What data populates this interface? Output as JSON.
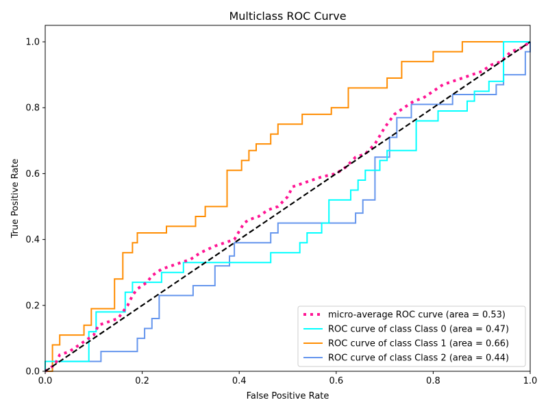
{
  "chart_data": {
    "type": "line",
    "title": "Multiclass ROC Curve",
    "xlabel": "False Positive Rate",
    "ylabel": "True Positive Rate",
    "xlim": [
      0.0,
      1.0
    ],
    "ylim": [
      0.0,
      1.05
    ],
    "x_ticks": [
      "0.0",
      "0.2",
      "0.4",
      "0.6",
      "0.8",
      "1.0"
    ],
    "y_ticks": [
      "0.0",
      "0.2",
      "0.4",
      "0.6",
      "0.8",
      "1.0"
    ],
    "grid": false,
    "legend_position": "lower-right",
    "reference_line": {
      "style": "dashed",
      "color": "#000000",
      "points": [
        [
          0,
          0
        ],
        [
          1,
          1
        ]
      ]
    },
    "series": [
      {
        "name": "micro-average ROC curve (area = 0.53)",
        "color": "#ff1493",
        "style": "dotted",
        "points": [
          [
            0,
            0
          ],
          [
            0.02,
            0.02
          ],
          [
            0.03,
            0.05
          ],
          [
            0.05,
            0.06
          ],
          [
            0.07,
            0.08
          ],
          [
            0.09,
            0.1
          ],
          [
            0.1,
            0.11
          ],
          [
            0.11,
            0.14
          ],
          [
            0.13,
            0.15
          ],
          [
            0.15,
            0.16
          ],
          [
            0.17,
            0.2
          ],
          [
            0.18,
            0.23
          ],
          [
            0.19,
            0.25
          ],
          [
            0.21,
            0.27
          ],
          [
            0.22,
            0.29
          ],
          [
            0.24,
            0.31
          ],
          [
            0.26,
            0.32
          ],
          [
            0.28,
            0.33
          ],
          [
            0.3,
            0.34
          ],
          [
            0.32,
            0.36
          ],
          [
            0.35,
            0.38
          ],
          [
            0.37,
            0.39
          ],
          [
            0.39,
            0.4
          ],
          [
            0.41,
            0.45
          ],
          [
            0.42,
            0.46
          ],
          [
            0.44,
            0.47
          ],
          [
            0.46,
            0.49
          ],
          [
            0.48,
            0.5
          ],
          [
            0.5,
            0.53
          ],
          [
            0.51,
            0.56
          ],
          [
            0.53,
            0.57
          ],
          [
            0.55,
            0.58
          ],
          [
            0.57,
            0.59
          ],
          [
            0.6,
            0.6
          ],
          [
            0.62,
            0.62
          ],
          [
            0.64,
            0.65
          ],
          [
            0.66,
            0.66
          ],
          [
            0.68,
            0.69
          ],
          [
            0.7,
            0.74
          ],
          [
            0.72,
            0.78
          ],
          [
            0.74,
            0.8
          ],
          [
            0.76,
            0.82
          ],
          [
            0.78,
            0.83
          ],
          [
            0.8,
            0.85
          ],
          [
            0.82,
            0.87
          ],
          [
            0.84,
            0.88
          ],
          [
            0.86,
            0.89
          ],
          [
            0.88,
            0.9
          ],
          [
            0.9,
            0.91
          ],
          [
            0.92,
            0.93
          ],
          [
            0.94,
            0.94
          ],
          [
            0.96,
            0.97
          ],
          [
            0.98,
            0.98
          ],
          [
            1.0,
            1.0
          ]
        ]
      },
      {
        "name": "ROC curve of class Class 0 (area = 0.47)",
        "color": "#00ffff",
        "style": "solid",
        "points": [
          [
            0,
            0
          ],
          [
            0.0,
            0.03
          ],
          [
            0.09,
            0.03
          ],
          [
            0.09,
            0.12
          ],
          [
            0.105,
            0.12
          ],
          [
            0.105,
            0.18
          ],
          [
            0.165,
            0.18
          ],
          [
            0.165,
            0.24
          ],
          [
            0.18,
            0.24
          ],
          [
            0.18,
            0.27
          ],
          [
            0.24,
            0.27
          ],
          [
            0.24,
            0.3
          ],
          [
            0.285,
            0.3
          ],
          [
            0.285,
            0.33
          ],
          [
            0.465,
            0.33
          ],
          [
            0.465,
            0.36
          ],
          [
            0.525,
            0.36
          ],
          [
            0.525,
            0.39
          ],
          [
            0.54,
            0.39
          ],
          [
            0.54,
            0.42
          ],
          [
            0.57,
            0.42
          ],
          [
            0.57,
            0.45
          ],
          [
            0.585,
            0.45
          ],
          [
            0.585,
            0.52
          ],
          [
            0.63,
            0.52
          ],
          [
            0.63,
            0.55
          ],
          [
            0.645,
            0.55
          ],
          [
            0.645,
            0.58
          ],
          [
            0.66,
            0.58
          ],
          [
            0.66,
            0.61
          ],
          [
            0.69,
            0.61
          ],
          [
            0.69,
            0.64
          ],
          [
            0.705,
            0.64
          ],
          [
            0.705,
            0.67
          ],
          [
            0.765,
            0.67
          ],
          [
            0.765,
            0.76
          ],
          [
            0.81,
            0.76
          ],
          [
            0.81,
            0.79
          ],
          [
            0.87,
            0.79
          ],
          [
            0.87,
            0.82
          ],
          [
            0.885,
            0.82
          ],
          [
            0.885,
            0.85
          ],
          [
            0.915,
            0.85
          ],
          [
            0.915,
            0.88
          ],
          [
            0.945,
            0.88
          ],
          [
            0.945,
            1.0
          ],
          [
            1.0,
            1.0
          ]
        ]
      },
      {
        "name": "ROC curve of class Class 1 (area = 0.66)",
        "color": "#ff8c00",
        "style": "solid",
        "points": [
          [
            0,
            0
          ],
          [
            0.015,
            0.0
          ],
          [
            0.015,
            0.08
          ],
          [
            0.03,
            0.08
          ],
          [
            0.03,
            0.11
          ],
          [
            0.08,
            0.11
          ],
          [
            0.08,
            0.14
          ],
          [
            0.095,
            0.14
          ],
          [
            0.095,
            0.19
          ],
          [
            0.143,
            0.19
          ],
          [
            0.143,
            0.28
          ],
          [
            0.16,
            0.28
          ],
          [
            0.16,
            0.36
          ],
          [
            0.18,
            0.36
          ],
          [
            0.18,
            0.39
          ],
          [
            0.19,
            0.39
          ],
          [
            0.19,
            0.42
          ],
          [
            0.25,
            0.42
          ],
          [
            0.25,
            0.44
          ],
          [
            0.31,
            0.44
          ],
          [
            0.31,
            0.47
          ],
          [
            0.33,
            0.47
          ],
          [
            0.33,
            0.5
          ],
          [
            0.375,
            0.5
          ],
          [
            0.375,
            0.61
          ],
          [
            0.405,
            0.61
          ],
          [
            0.405,
            0.64
          ],
          [
            0.42,
            0.64
          ],
          [
            0.42,
            0.67
          ],
          [
            0.435,
            0.67
          ],
          [
            0.435,
            0.69
          ],
          [
            0.465,
            0.69
          ],
          [
            0.465,
            0.72
          ],
          [
            0.48,
            0.72
          ],
          [
            0.48,
            0.75
          ],
          [
            0.53,
            0.75
          ],
          [
            0.53,
            0.78
          ],
          [
            0.59,
            0.78
          ],
          [
            0.59,
            0.8
          ],
          [
            0.625,
            0.8
          ],
          [
            0.625,
            0.86
          ],
          [
            0.705,
            0.86
          ],
          [
            0.705,
            0.89
          ],
          [
            0.735,
            0.89
          ],
          [
            0.735,
            0.94
          ],
          [
            0.8,
            0.94
          ],
          [
            0.8,
            0.97
          ],
          [
            0.86,
            0.97
          ],
          [
            0.86,
            1.0
          ],
          [
            1.0,
            1.0
          ]
        ]
      },
      {
        "name": "ROC curve of class Class 2 (area = 0.44)",
        "color": "#6495ed",
        "style": "solid",
        "points": [
          [
            0,
            0
          ],
          [
            0.015,
            0.0
          ],
          [
            0.015,
            0.03
          ],
          [
            0.115,
            0.03
          ],
          [
            0.115,
            0.06
          ],
          [
            0.19,
            0.06
          ],
          [
            0.19,
            0.1
          ],
          [
            0.205,
            0.1
          ],
          [
            0.205,
            0.13
          ],
          [
            0.22,
            0.13
          ],
          [
            0.22,
            0.16
          ],
          [
            0.235,
            0.16
          ],
          [
            0.235,
            0.23
          ],
          [
            0.305,
            0.23
          ],
          [
            0.305,
            0.26
          ],
          [
            0.35,
            0.26
          ],
          [
            0.35,
            0.32
          ],
          [
            0.38,
            0.32
          ],
          [
            0.38,
            0.35
          ],
          [
            0.39,
            0.35
          ],
          [
            0.39,
            0.39
          ],
          [
            0.465,
            0.39
          ],
          [
            0.465,
            0.42
          ],
          [
            0.48,
            0.42
          ],
          [
            0.48,
            0.45
          ],
          [
            0.64,
            0.45
          ],
          [
            0.64,
            0.48
          ],
          [
            0.655,
            0.48
          ],
          [
            0.655,
            0.52
          ],
          [
            0.68,
            0.52
          ],
          [
            0.68,
            0.65
          ],
          [
            0.71,
            0.65
          ],
          [
            0.71,
            0.71
          ],
          [
            0.725,
            0.71
          ],
          [
            0.725,
            0.77
          ],
          [
            0.755,
            0.77
          ],
          [
            0.755,
            0.81
          ],
          [
            0.84,
            0.81
          ],
          [
            0.84,
            0.84
          ],
          [
            0.93,
            0.84
          ],
          [
            0.93,
            0.87
          ],
          [
            0.945,
            0.87
          ],
          [
            0.945,
            0.9
          ],
          [
            0.99,
            0.9
          ],
          [
            0.99,
            0.97
          ],
          [
            1.0,
            0.97
          ],
          [
            1.0,
            1.0
          ]
        ]
      }
    ]
  }
}
